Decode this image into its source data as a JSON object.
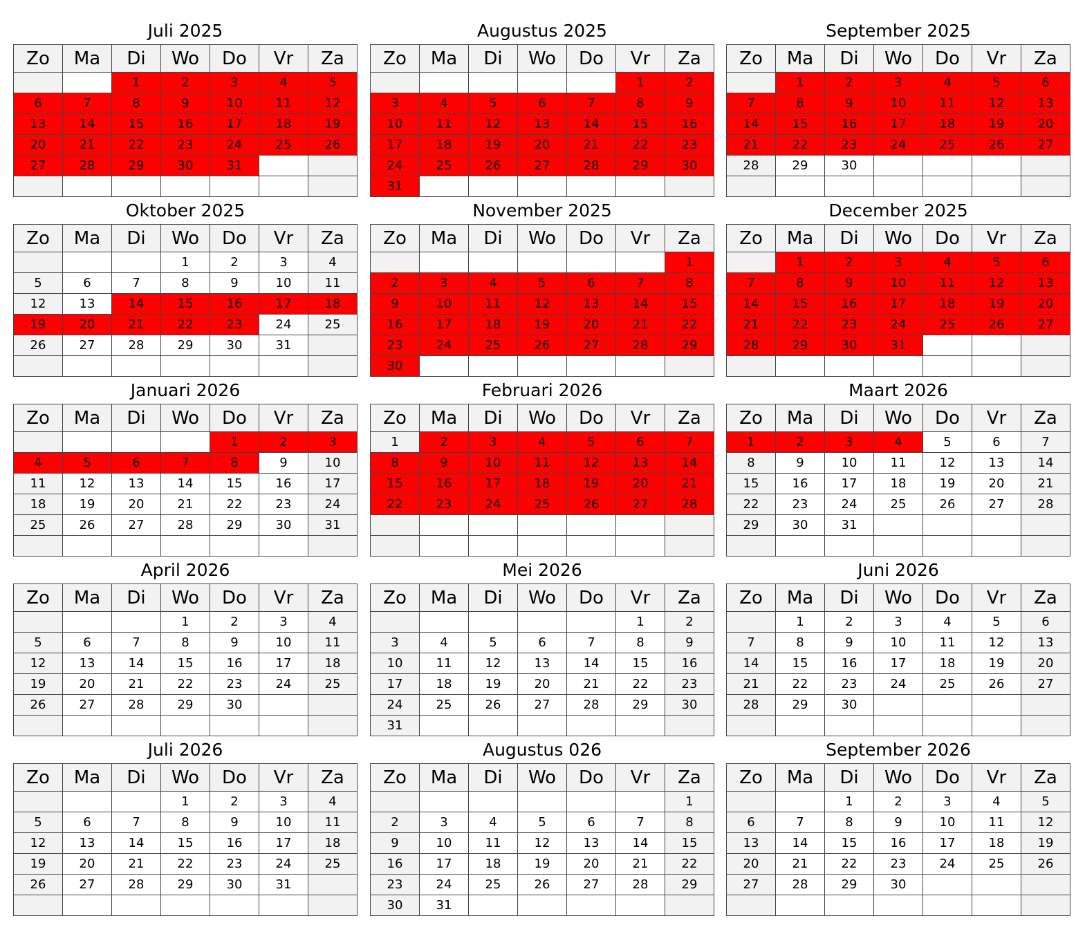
{
  "weekdays": [
    "Zo",
    "Ma",
    "Di",
    "Wo",
    "Do",
    "Vr",
    "Za"
  ],
  "colors": {
    "highlight": "#ff0000",
    "weekend": "#f2f2f2",
    "grid": "#444444"
  },
  "months": [
    {
      "title": "Juli 2025",
      "offset": 2,
      "days": 31,
      "highlighted": [
        1,
        2,
        3,
        4,
        5,
        6,
        7,
        8,
        9,
        10,
        11,
        12,
        13,
        14,
        15,
        16,
        17,
        18,
        19,
        20,
        21,
        22,
        23,
        24,
        25,
        26,
        27,
        28,
        29,
        30,
        31
      ]
    },
    {
      "title": "Augustus 2025",
      "offset": 5,
      "days": 31,
      "highlighted": [
        1,
        2,
        3,
        4,
        5,
        6,
        7,
        8,
        9,
        10,
        11,
        12,
        13,
        14,
        15,
        16,
        17,
        18,
        19,
        20,
        21,
        22,
        23,
        24,
        25,
        26,
        27,
        28,
        29,
        30,
        31
      ]
    },
    {
      "title": "September 2025",
      "offset": 1,
      "days": 30,
      "highlighted": [
        1,
        2,
        3,
        4,
        5,
        6,
        7,
        8,
        9,
        10,
        11,
        12,
        13,
        14,
        15,
        16,
        17,
        18,
        19,
        20,
        21,
        22,
        23,
        24,
        25,
        26,
        27
      ]
    },
    {
      "title": "Oktober 2025",
      "offset": 3,
      "days": 31,
      "highlighted": [
        14,
        15,
        16,
        17,
        18,
        19,
        20,
        21,
        22,
        23
      ]
    },
    {
      "title": "November 2025",
      "offset": 6,
      "days": 30,
      "highlighted": [
        1,
        2,
        3,
        4,
        5,
        6,
        7,
        8,
        9,
        10,
        11,
        12,
        13,
        14,
        15,
        16,
        17,
        18,
        19,
        20,
        21,
        22,
        23,
        24,
        25,
        26,
        27,
        28,
        29,
        30
      ]
    },
    {
      "title": "December 2025",
      "offset": 1,
      "days": 31,
      "highlighted": [
        1,
        2,
        3,
        4,
        5,
        6,
        7,
        8,
        9,
        10,
        11,
        12,
        13,
        14,
        15,
        16,
        17,
        18,
        19,
        20,
        21,
        22,
        23,
        24,
        25,
        26,
        27,
        28,
        29,
        30,
        31
      ]
    },
    {
      "title": "Januari 2026",
      "offset": 4,
      "days": 31,
      "highlighted": [
        1,
        2,
        3,
        4,
        5,
        6,
        7,
        8
      ]
    },
    {
      "title": "Februari 2026",
      "offset": 0,
      "days": 28,
      "highlighted": [
        2,
        3,
        4,
        5,
        6,
        7,
        8,
        9,
        10,
        11,
        12,
        13,
        14,
        15,
        16,
        17,
        18,
        19,
        20,
        21,
        22,
        23,
        24,
        25,
        26,
        27,
        28
      ]
    },
    {
      "title": "Maart 2026",
      "offset": 0,
      "days": 31,
      "highlighted": [
        1,
        2,
        3,
        4
      ]
    },
    {
      "title": "April 2026",
      "offset": 3,
      "days": 30,
      "highlighted": []
    },
    {
      "title": "Mei 2026",
      "offset": 5,
      "days": 31,
      "highlighted": []
    },
    {
      "title": "Juni 2026",
      "offset": 1,
      "days": 30,
      "highlighted": []
    },
    {
      "title": "Juli 2026",
      "offset": 3,
      "days": 31,
      "highlighted": []
    },
    {
      "title": "Augustus 026",
      "offset": 6,
      "days": 31,
      "highlighted": []
    },
    {
      "title": "September 2026",
      "offset": 2,
      "days": 30,
      "highlighted": []
    }
  ]
}
